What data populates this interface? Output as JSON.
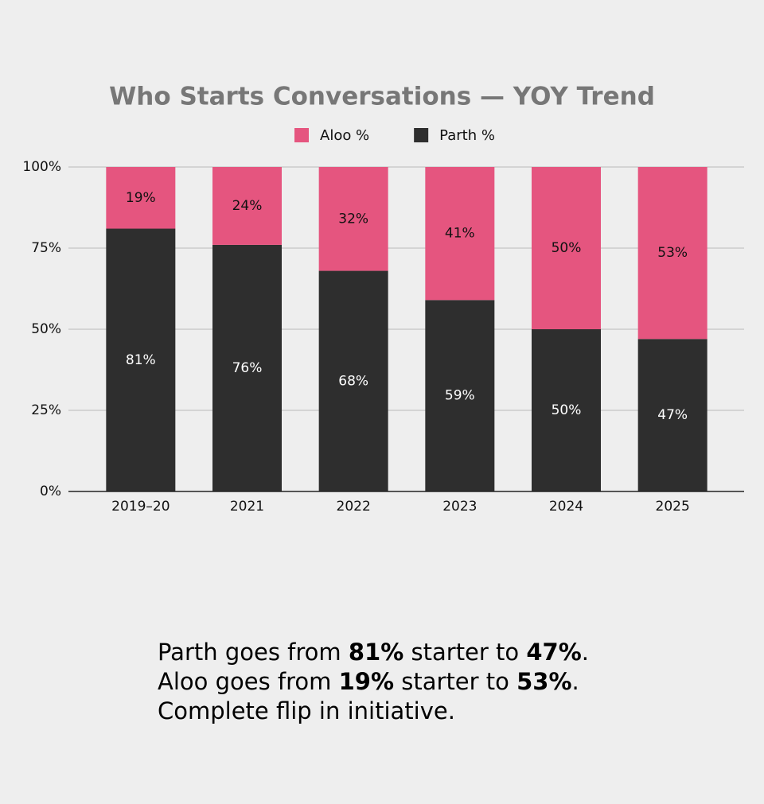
{
  "chart_data": {
    "type": "stacked_bar",
    "title": "Who Starts Conversations — YOY Trend",
    "categories": [
      "2019–20",
      "2021",
      "2022",
      "2023",
      "2024",
      "2025"
    ],
    "series": [
      {
        "name": "Parth %",
        "color": "#2e2e2e",
        "label_color": "#ffffff",
        "values": [
          81,
          76,
          68,
          59,
          50,
          47
        ],
        "value_labels": [
          "81%",
          "76%",
          "68%",
          "59%",
          "50%",
          "47%"
        ]
      },
      {
        "name": "Aloo %",
        "color": "#e5557f",
        "label_color": "#111111",
        "values": [
          19,
          24,
          32,
          41,
          50,
          53
        ],
        "value_labels": [
          "19%",
          "24%",
          "32%",
          "41%",
          "50%",
          "53%"
        ]
      }
    ],
    "legend_order": [
      1,
      0
    ],
    "ylim": [
      0,
      100
    ],
    "yticks": [
      {
        "value": 0,
        "label": "0%"
      },
      {
        "value": 25,
        "label": "25%"
      },
      {
        "value": 50,
        "label": "50%"
      },
      {
        "value": 75,
        "label": "75%"
      },
      {
        "value": 100,
        "label": "100%"
      }
    ],
    "grid": true
  },
  "caption": {
    "lines": [
      [
        {
          "text": "Parth goes from ",
          "bold": false
        },
        {
          "text": "81%",
          "bold": true
        },
        {
          "text": " starter to ",
          "bold": false
        },
        {
          "text": "47%",
          "bold": true
        },
        {
          "text": ".",
          "bold": false
        }
      ],
      [
        {
          "text": "Aloo goes from ",
          "bold": false
        },
        {
          "text": "19%",
          "bold": true
        },
        {
          "text": " starter to ",
          "bold": false
        },
        {
          "text": "53%",
          "bold": true
        },
        {
          "text": ".",
          "bold": false
        }
      ],
      [
        {
          "text": "Complete flip in initiative.",
          "bold": false
        }
      ]
    ]
  }
}
